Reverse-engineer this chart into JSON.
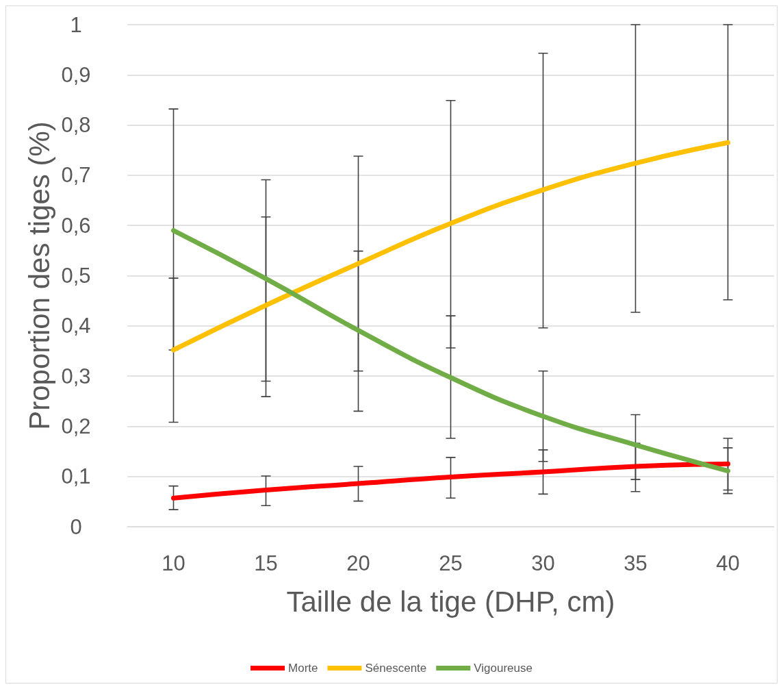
{
  "chart_data": {
    "type": "line",
    "xlabel": "Taille de la tige (DHP, cm)",
    "ylabel": "Proportion des tiges (%)",
    "categories": [
      "10",
      "15",
      "20",
      "25",
      "30",
      "35",
      "40"
    ],
    "ylim": [
      0,
      1
    ],
    "yticks": [
      0,
      {
        "value": 0.1,
        "label": "0,1"
      },
      {
        "value": 0.2,
        "label": "0,2"
      },
      {
        "value": 0.3,
        "label": "0,3"
      },
      {
        "value": 0.4,
        "label": "0,4"
      },
      {
        "value": 0.5,
        "label": "0,5"
      },
      {
        "value": 0.6,
        "label": "0,6"
      },
      {
        "value": 0.7,
        "label": "0,7"
      },
      {
        "value": 0.8,
        "label": "0,8"
      },
      {
        "value": 0.9,
        "label": "0,9"
      },
      1
    ],
    "grid": "y",
    "legend": "bottom",
    "marker": "none",
    "line_style": "solid",
    "series": [
      {
        "name": "Morte",
        "color": "#ff0000",
        "values": [
          0.057,
          0.073,
          0.086,
          0.099,
          0.109,
          0.12,
          0.125
        ],
        "errors": [
          [
            0.034,
            0.081
          ],
          [
            0.042,
            0.101
          ],
          [
            0.051,
            0.12
          ],
          [
            0.057,
            0.138
          ],
          [
            0.065,
            0.153
          ],
          [
            0.07,
            0.166
          ],
          [
            0.073,
            0.176
          ]
        ]
      },
      {
        "name": "Sénescente",
        "color": "#ffc000",
        "values": [
          0.352,
          0.441,
          0.524,
          0.604,
          0.671,
          0.724,
          0.765
        ],
        "errors": [
          [
            0.208,
            0.495
          ],
          [
            0.259,
            0.617
          ],
          [
            0.31,
            0.738
          ],
          [
            0.356,
            0.849
          ],
          [
            0.396,
            0.943
          ],
          [
            0.427,
            1
          ],
          [
            0.452,
            1
          ]
        ]
      },
      {
        "name": "Vigoureuse",
        "color": "#70ad47",
        "values": [
          0.59,
          0.494,
          0.391,
          0.297,
          0.22,
          0.163,
          0.111
        ],
        "errors": [
          [
            0.352,
            0.832
          ],
          [
            0.29,
            0.691
          ],
          [
            0.23,
            0.549
          ],
          [
            0.176,
            0.42
          ],
          [
            0.13,
            0.31
          ],
          [
            0.094,
            0.223
          ],
          [
            0.066,
            0.157
          ]
        ]
      }
    ]
  }
}
